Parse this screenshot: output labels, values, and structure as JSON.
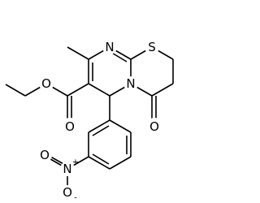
{
  "atoms": [
    {
      "label": "N"
    },
    {
      "label": "S"
    },
    {
      "label": "N"
    },
    {
      "label": "O"
    },
    {
      "label": "O"
    },
    {
      "label": "O"
    },
    {
      "label": "N",
      "charge": "+"
    },
    {
      "label": "O"
    },
    {
      "label": "O",
      "charge": "-"
    }
  ]
}
